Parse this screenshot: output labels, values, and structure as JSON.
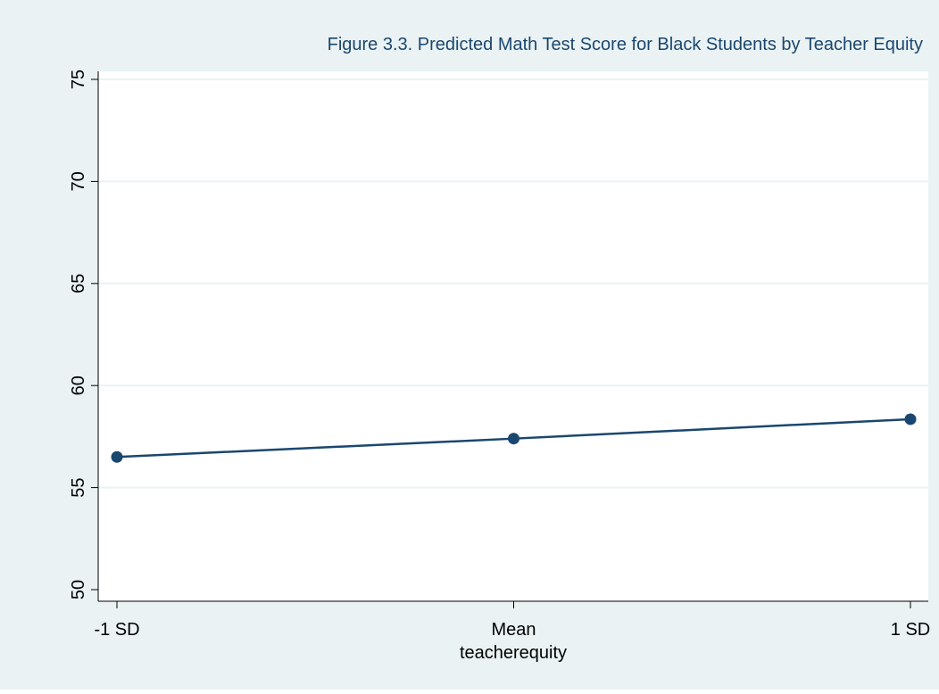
{
  "chart_data": {
    "type": "line",
    "title": "Figure 3.3. Predicted Math Test Score for Black Students by Teacher Equity",
    "xlabel": "teacherequity",
    "ylabel": "",
    "categories": [
      "-1 SD",
      "Mean",
      "1 SD"
    ],
    "series": [
      {
        "values": [
          56.5,
          57.4,
          58.35
        ]
      }
    ],
    "ylim": [
      49.5,
      75
    ],
    "yticks": [
      50,
      55,
      60,
      65,
      70,
      75
    ],
    "grid": "horizontal",
    "legend": "none",
    "colors": {
      "background": "#eaf2f3",
      "plot_area": "#ffffff",
      "line": "#1a476f",
      "gridline": "#eaf2f3",
      "text": "#1a476f",
      "axis_text": "#000000"
    }
  }
}
